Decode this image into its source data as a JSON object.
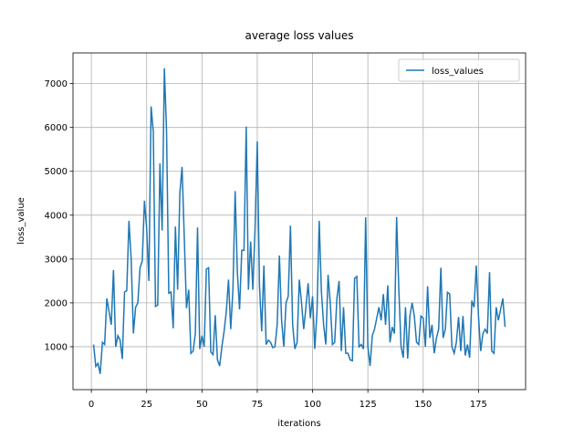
{
  "chart_data": {
    "type": "line",
    "title": "average loss values",
    "x_label": "iterations",
    "y_label": "loss_value",
    "x": [
      1,
      2,
      3,
      4,
      5,
      6,
      7,
      8,
      9,
      10,
      11,
      12,
      13,
      14,
      15,
      16,
      17,
      18,
      19,
      20,
      21,
      22,
      23,
      24,
      25,
      26,
      27,
      28,
      29,
      30,
      31,
      32,
      33,
      34,
      35,
      36,
      37,
      38,
      39,
      40,
      41,
      42,
      43,
      44,
      45,
      46,
      47,
      48,
      49,
      50,
      51,
      52,
      53,
      54,
      55,
      56,
      57,
      58,
      59,
      60,
      61,
      62,
      63,
      64,
      65,
      66,
      67,
      68,
      69,
      70,
      71,
      72,
      73,
      74,
      75,
      76,
      77,
      78,
      79,
      80,
      81,
      82,
      83,
      84,
      85,
      86,
      87,
      88,
      89,
      90,
      91,
      92,
      93,
      94,
      95,
      96,
      97,
      98,
      99,
      100,
      101,
      102,
      103,
      104,
      105,
      106,
      107,
      108,
      109,
      110,
      111,
      112,
      113,
      114,
      115,
      116,
      117,
      118,
      119,
      120,
      121,
      122,
      123,
      124,
      125,
      126,
      127,
      128,
      129,
      130,
      131,
      132,
      133,
      134,
      135,
      136,
      137,
      138,
      139,
      140,
      141,
      142,
      143,
      144,
      145,
      146,
      147,
      148,
      149,
      150,
      151,
      152,
      153,
      154,
      155,
      156,
      157,
      158,
      159,
      160,
      161,
      162,
      163,
      164,
      165,
      166,
      167,
      168,
      169,
      170,
      171,
      172,
      173,
      174,
      175,
      176,
      177,
      178,
      179,
      180,
      181,
      182,
      183,
      184,
      185,
      186,
      187
    ],
    "series": [
      {
        "name": "loss_values",
        "color": "#1f77b4",
        "values": [
          1050,
          550,
          620,
          380,
          1100,
          1050,
          2100,
          1800,
          1500,
          2750,
          1000,
          1250,
          1150,
          720,
          2250,
          2280,
          3870,
          3000,
          1300,
          1900,
          2000,
          2800,
          2950,
          4330,
          3700,
          2500,
          6480,
          5900,
          1920,
          1950,
          5180,
          3650,
          7350,
          5900,
          2220,
          2250,
          1420,
          3740,
          2300,
          4500,
          5100,
          3500,
          1880,
          2300,
          850,
          900,
          1300,
          3720,
          950,
          1250,
          1000,
          2770,
          2800,
          880,
          820,
          1720,
          700,
          560,
          1000,
          1350,
          1800,
          2530,
          1400,
          2300,
          4550,
          2700,
          1850,
          3200,
          3200,
          6020,
          2300,
          3400,
          2300,
          3700,
          5680,
          2400,
          1350,
          2850,
          1050,
          1150,
          1100,
          980,
          1000,
          1500,
          3080,
          1600,
          1000,
          2000,
          2150,
          3760,
          1500,
          950,
          1100,
          2530,
          2000,
          1400,
          1900,
          2450,
          1650,
          2150,
          950,
          1800,
          3870,
          2250,
          1500,
          1050,
          2640,
          2000,
          1050,
          1100,
          2100,
          2500,
          900,
          1900,
          850,
          850,
          700,
          680,
          2560,
          2600,
          1000,
          1050,
          950,
          3950,
          1000,
          560,
          1250,
          1400,
          1650,
          1900,
          1600,
          2200,
          1500,
          2400,
          1100,
          1450,
          1300,
          3960,
          2300,
          1000,
          750,
          1900,
          730,
          1700,
          2000,
          1700,
          1100,
          1050,
          1700,
          1650,
          1000,
          2380,
          1200,
          1500,
          850,
          1200,
          1400,
          2800,
          1200,
          1400,
          2240,
          2200,
          1000,
          850,
          1100,
          1680,
          900,
          1700,
          800,
          1050,
          750,
          2050,
          1900,
          2850,
          1700,
          900,
          1300,
          1400,
          1300,
          2700,
          900,
          850,
          1900,
          1600,
          1850,
          2100,
          1450
        ]
      }
    ],
    "xlim": [
      -8.3,
      196.3
    ],
    "ylim": [
      21,
      7700
    ],
    "xticks": [
      0,
      25,
      50,
      75,
      100,
      125,
      150,
      175
    ],
    "yticks": [
      1000,
      2000,
      3000,
      4000,
      5000,
      6000,
      7000
    ],
    "grid": true,
    "legend": "upper right"
  }
}
